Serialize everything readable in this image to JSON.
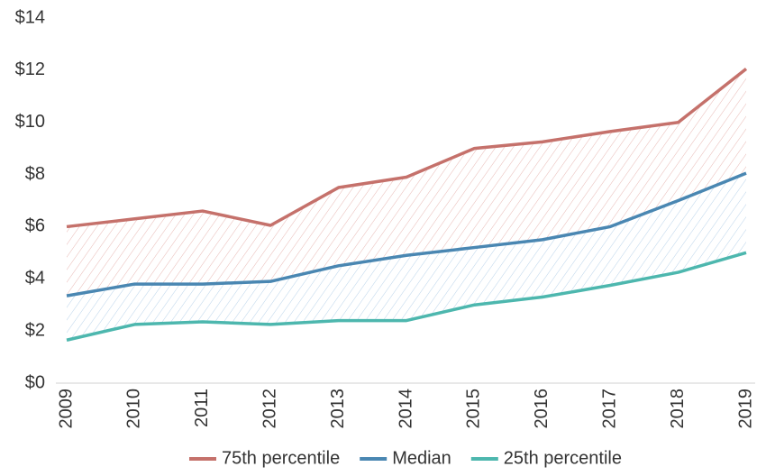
{
  "chart_data": {
    "type": "line",
    "categories": [
      "2009",
      "2010",
      "2011",
      "2012",
      "2013",
      "2014",
      "2015",
      "2016",
      "2017",
      "2018",
      "2019"
    ],
    "series": [
      {
        "name": "75th percentile",
        "color": "#c5716b",
        "values": [
          6.0,
          6.3,
          6.6,
          6.05,
          7.5,
          7.9,
          9.0,
          9.25,
          9.65,
          10.0,
          12.05
        ]
      },
      {
        "name": "Median",
        "color": "#4a87b2",
        "values": [
          3.35,
          3.8,
          3.8,
          3.9,
          4.5,
          4.9,
          5.2,
          5.5,
          6.0,
          7.0,
          8.05
        ]
      },
      {
        "name": "25th percentile",
        "color": "#4db7ae",
        "values": [
          1.65,
          2.25,
          2.35,
          2.25,
          2.4,
          2.4,
          3.0,
          3.3,
          3.75,
          4.25,
          5.0
        ]
      }
    ],
    "ylim": [
      0,
      14
    ],
    "yticks": [
      {
        "value": 0,
        "label": "$0"
      },
      {
        "value": 2,
        "label": "$2"
      },
      {
        "value": 4,
        "label": "$4"
      },
      {
        "value": 6,
        "label": "$6"
      },
      {
        "value": 8,
        "label": "$8"
      },
      {
        "value": 10,
        "label": "$10"
      },
      {
        "value": 12,
        "label": "$12"
      },
      {
        "value": 14,
        "label": "$14"
      }
    ],
    "grid": false,
    "legend": "bottom"
  }
}
